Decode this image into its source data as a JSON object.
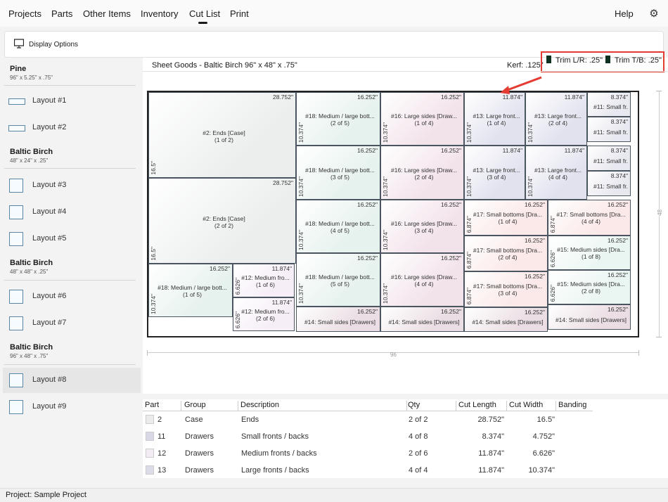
{
  "nav": {
    "items": [
      "Projects",
      "Parts",
      "Other Items",
      "Inventory",
      "Cut List",
      "Print"
    ],
    "active": "Cut List",
    "help": "Help"
  },
  "display_options": {
    "label": "Display Options"
  },
  "sidebar": {
    "groups": [
      {
        "title": "Pine",
        "dims": "96\" x 5.25\" x .75\"",
        "layouts": [
          "Layout #1",
          "Layout #2"
        ]
      },
      {
        "title": "Baltic Birch",
        "dims": "48\" x 24\" x .25\"",
        "layouts": [
          "Layout #3",
          "Layout #4",
          "Layout #5"
        ]
      },
      {
        "title": "Baltic Birch",
        "dims": "48\" x 48\" x .25\"",
        "layouts": [
          "Layout #6",
          "Layout #7"
        ]
      },
      {
        "title": "Baltic Birch",
        "dims": "96\" x 48\" x .75\"",
        "layouts": [
          "Layout #8",
          "Layout #9"
        ]
      }
    ],
    "selected": "Layout #8"
  },
  "layout_view": {
    "sheet_title": "Sheet Goods - Baltic Birch   96\" x 48\" x .75\"",
    "kerf": "Kerf: .125\"",
    "trim_lr": "Trim L/R: .25\"",
    "trim_tb": "Trim T/B: .25\"",
    "width_label": "96",
    "height_label": "48",
    "pieces": [
      {
        "name": "#2: Ends [Case]",
        "copy": "(1 of 2)",
        "len": "28.752\"",
        "wid": "16.5\"",
        "color": "#eceeee"
      },
      {
        "name": "#2: Ends [Case]",
        "copy": "(2 of 2)",
        "len": "28.752\"",
        "wid": "16.5\"",
        "color": "#eceeee"
      },
      {
        "name": "#18: Medium / large bott...",
        "copy": "(1 of 5)",
        "len": "16.252\"",
        "wid": "10.374\"",
        "color": "#e6f2ee"
      },
      {
        "name": "#12: Medium fro...",
        "copy": "(1 of 6)",
        "len": "11.874\"",
        "wid": "6.626\"",
        "color": "#f6eef7"
      },
      {
        "name": "#12: Medium fro...",
        "copy": "(2 of 6)",
        "len": "11.874\"",
        "wid": "6.626\"",
        "color": "#f6eef7"
      },
      {
        "name": "#18: Medium / large bott...",
        "copy": "(2 of 5)",
        "len": "16.252\"",
        "wid": "10.374\"",
        "color": "#e6f2ee"
      },
      {
        "name": "#18: Medium / large bott...",
        "copy": "(3 of 5)",
        "len": "16.252\"",
        "wid": "10.374\"",
        "color": "#e6f2ee"
      },
      {
        "name": "#18: Medium / large bott...",
        "copy": "(4 of 5)",
        "len": "16.252\"",
        "wid": "10.374\"",
        "color": "#e6f2ee"
      },
      {
        "name": "#18: Medium / large bott...",
        "copy": "(5 of 5)",
        "len": "16.252\"",
        "wid": "10.374\"",
        "color": "#e6f2ee"
      },
      {
        "name": "#14: Small sides [Drawers]",
        "copy": "",
        "len": "16.252\"",
        "wid": "",
        "color": "#eadde3"
      },
      {
        "name": "#16: Large sides [Draw...",
        "copy": "(1 of 4)",
        "len": "16.252\"",
        "wid": "10.374\"",
        "color": "#f2e2ea"
      },
      {
        "name": "#16: Large sides [Draw...",
        "copy": "(2 of 4)",
        "len": "16.252\"",
        "wid": "10.374\"",
        "color": "#f2e2ea"
      },
      {
        "name": "#16: Large sides [Draw...",
        "copy": "(3 of 4)",
        "len": "16.252\"",
        "wid": "10.374\"",
        "color": "#f2e2ea"
      },
      {
        "name": "#16: Large sides [Draw...",
        "copy": "(4 of 4)",
        "len": "16.252\"",
        "wid": "10.374\"",
        "color": "#f2e2ea"
      },
      {
        "name": "#14: Small sides [Drawers]",
        "copy": "",
        "len": "16.252\"",
        "wid": "",
        "color": "#eadde3"
      },
      {
        "name": "#13: Large front...",
        "copy": "(1 of 4)",
        "len": "11.874\"",
        "wid": "10.374\"",
        "color": "#e2e2ef"
      },
      {
        "name": "#13: Large front...",
        "copy": "(2 of 4)",
        "len": "11.874\"",
        "wid": "10.374\"",
        "color": "#e2e2ef"
      },
      {
        "name": "#13: Large front...",
        "copy": "(3 of 4)",
        "len": "11.874\"",
        "wid": "10.374\"",
        "color": "#e2e2ef"
      },
      {
        "name": "#13: Large front...",
        "copy": "(4 of 4)",
        "len": "11.874\"",
        "wid": "10.374\"",
        "color": "#e2e2ef"
      },
      {
        "name": "#11: Small fr...",
        "copy": "",
        "len": "8.374\"",
        "wid": "",
        "color": "#e8e8f0"
      },
      {
        "name": "#11: Small fr...",
        "copy": "",
        "len": "8.374\"",
        "wid": "",
        "color": "#e8e8f0"
      },
      {
        "name": "#11: Small fr...",
        "copy": "",
        "len": "8.374\"",
        "wid": "",
        "color": "#e8e8f0"
      },
      {
        "name": "#11: Small fr...",
        "copy": "",
        "len": "8.374\"",
        "wid": "",
        "color": "#e8e8f0"
      },
      {
        "name": "#17: Small bottoms [Dra...",
        "copy": "(1 of 4)",
        "len": "16.252\"",
        "wid": "6.874\"",
        "color": "#fbe8e8"
      },
      {
        "name": "#17: Small bottoms [Dra...",
        "copy": "(2 of 4)",
        "len": "16.252\"",
        "wid": "6.874\"",
        "color": "#fbe8e8"
      },
      {
        "name": "#17: Small bottoms [Dra...",
        "copy": "(3 of 4)",
        "len": "16.252\"",
        "wid": "6.874\"",
        "color": "#fbe8e8"
      },
      {
        "name": "#14: Small sides [Drawers]",
        "copy": "",
        "len": "16.252\"",
        "wid": "",
        "color": "#eadde3"
      },
      {
        "name": "#17: Small bottoms [Dra...",
        "copy": "(4 of 4)",
        "len": "16.252\"",
        "wid": "6.874\"",
        "color": "#fbe8e8"
      },
      {
        "name": "#15: Medium sides [Dra...",
        "copy": "(1 of 8)",
        "len": "16.252\"",
        "wid": "6.626\"",
        "color": "#eaf6f2"
      },
      {
        "name": "#15: Medium sides [Dra...",
        "copy": "(2 of 8)",
        "len": "16.252\"",
        "wid": "6.626\"",
        "color": "#eaf6f2"
      },
      {
        "name": "#14: Small sides [Drawers]",
        "copy": "",
        "len": "16.252\"",
        "wid": "",
        "color": "#eadde3"
      }
    ]
  },
  "table": {
    "headers": [
      "Part",
      "Group",
      "Description",
      "Qty",
      "Cut Length",
      "Cut Width",
      "Banding"
    ],
    "rows": [
      {
        "part": "2",
        "group": "Case",
        "desc": "Ends",
        "qty": "2 of 2",
        "len": "28.752\"",
        "wid": "16.5\"",
        "color": "#ebebeb"
      },
      {
        "part": "11",
        "group": "Drawers",
        "desc": "Small fronts / backs",
        "qty": "4 of 8",
        "len": "8.374\"",
        "wid": "4.752\"",
        "color": "#d8d8e6"
      },
      {
        "part": "12",
        "group": "Drawers",
        "desc": "Medium fronts / backs",
        "qty": "2 of 6",
        "len": "11.874\"",
        "wid": "6.626\"",
        "color": "#f4ecf4"
      },
      {
        "part": "13",
        "group": "Drawers",
        "desc": "Large fronts / backs",
        "qty": "4 of 4",
        "len": "11.874\"",
        "wid": "10.374\"",
        "color": "#dcdce8"
      }
    ]
  },
  "status": {
    "text": "Project: Sample Project"
  },
  "colors": {
    "annotation": "#e43b32",
    "accent": "#1a1a1a"
  }
}
